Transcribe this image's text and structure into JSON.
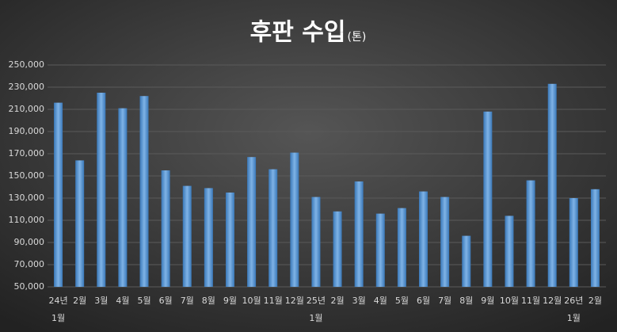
{
  "chart_data": {
    "type": "bar",
    "title": "후판 수입",
    "title_unit": "(톤)",
    "categories": [
      "24년 1월",
      "2월",
      "3월",
      "4월",
      "5월",
      "6월",
      "7월",
      "8월",
      "9월",
      "10월",
      "11월",
      "12월",
      "25년 1월",
      "2월",
      "3월",
      "4월",
      "5월",
      "6월",
      "7월",
      "8월",
      "9월",
      "10월",
      "11월",
      "12월",
      "26년 1월",
      "2월"
    ],
    "values": [
      216000,
      164000,
      225000,
      211000,
      222000,
      155000,
      141000,
      139000,
      135000,
      167000,
      156000,
      171000,
      131000,
      118000,
      145000,
      116000,
      121000,
      136000,
      131000,
      96000,
      208000,
      114000,
      146000,
      233000,
      130000,
      138000
    ],
    "color": "#5b9bd5",
    "ylim": [
      50000,
      250000
    ],
    "yticks": [
      {
        "value": 50000,
        "label": "50,000"
      },
      {
        "value": 70000,
        "label": "70,000"
      },
      {
        "value": 90000,
        "label": "90,000"
      },
      {
        "value": 110000,
        "label": "110,000"
      },
      {
        "value": 130000,
        "label": "130,000"
      },
      {
        "value": 150000,
        "label": "150,000"
      },
      {
        "value": 170000,
        "label": "170,000"
      },
      {
        "value": 190000,
        "label": "190,000"
      },
      {
        "value": 210000,
        "label": "210,000"
      },
      {
        "value": 230000,
        "label": "230,000"
      },
      {
        "value": 250000,
        "label": "250,000"
      }
    ],
    "grid": true
  }
}
